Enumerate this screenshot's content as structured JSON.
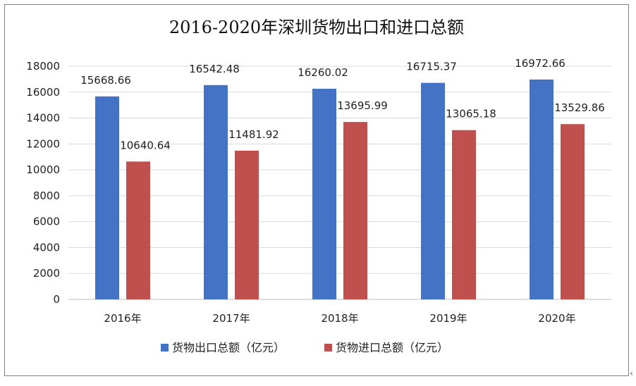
{
  "chart_data": {
    "type": "bar",
    "title": "2016-2020年深圳货物出口和进口总额",
    "categories": [
      "2016年",
      "2017年",
      "2018年",
      "2019年",
      "2020年"
    ],
    "series": [
      {
        "name": "货物出口总额（亿元）",
        "color": "#4472c4",
        "values": [
          15668.66,
          16542.48,
          16260.02,
          16715.37,
          16972.66
        ]
      },
      {
        "name": "货物进口总额（亿元）",
        "color": "#c0504d",
        "values": [
          10640.64,
          11481.92,
          13695.99,
          13065.18,
          13529.86
        ]
      }
    ],
    "data_labels": [
      [
        "15668.66",
        "16542.48",
        "16260.02",
        "16715.37",
        "16972.66"
      ],
      [
        "10640.64",
        "11481.92",
        "13695.99",
        "13065.18",
        "13529.86"
      ]
    ],
    "ylim": [
      0,
      18000
    ],
    "yticks": [
      0,
      2000,
      4000,
      6000,
      8000,
      10000,
      12000,
      14000,
      16000,
      18000
    ],
    "grid": true,
    "legend_position": "bottom"
  }
}
